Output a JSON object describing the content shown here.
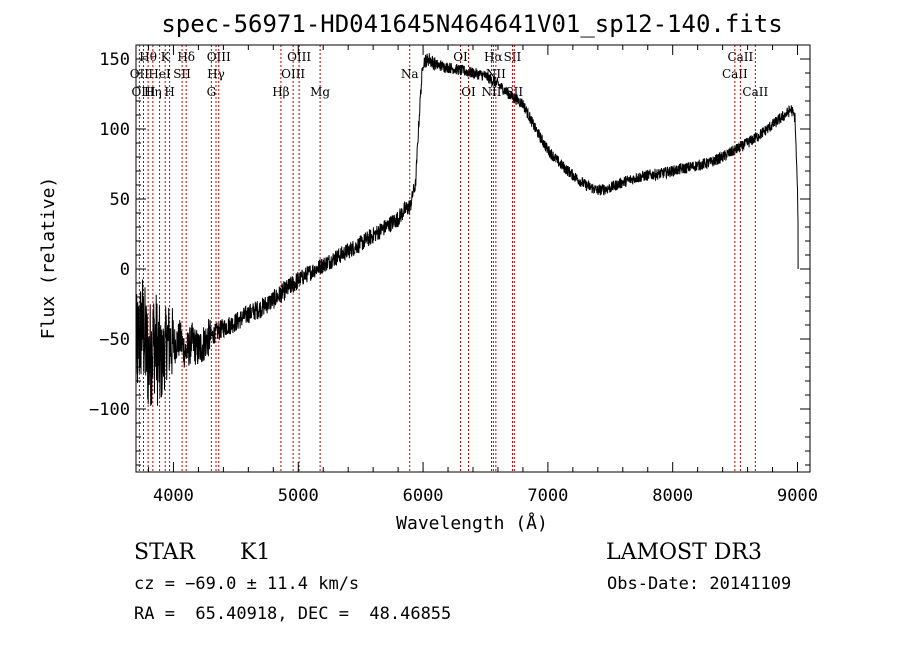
{
  "chart_data": {
    "type": "line",
    "title": "spec-56971-HD041645N464641V01_sp12-140.fits",
    "xlabel": "Wavelength (Å)",
    "ylabel": "Flux (relative)",
    "xlim": [
      3700,
      9100
    ],
    "ylim": [
      -145,
      160
    ],
    "x_ticks": [
      4000,
      5000,
      6000,
      7000,
      8000,
      9000
    ],
    "x_tick_labels": [
      "4000",
      "5000",
      "6000",
      "7000",
      "8000",
      "9000"
    ],
    "y_ticks": [
      -100,
      -50,
      0,
      50,
      100,
      150
    ],
    "y_tick_labels": [
      "−100",
      "−50",
      "0",
      "50",
      "100",
      "150"
    ],
    "series": [
      {
        "name": "spectrum",
        "points": [
          [
            3700,
            -60
          ],
          [
            3750,
            -40
          ],
          [
            3800,
            -65
          ],
          [
            3850,
            -50
          ],
          [
            3900,
            -70
          ],
          [
            3950,
            -50
          ],
          [
            4000,
            -55
          ],
          [
            4050,
            -50
          ],
          [
            4100,
            -60
          ],
          [
            4150,
            -52
          ],
          [
            4200,
            -58
          ],
          [
            4250,
            -52
          ],
          [
            4300,
            -48
          ],
          [
            4350,
            -45
          ],
          [
            4400,
            -42
          ],
          [
            4500,
            -38
          ],
          [
            4600,
            -32
          ],
          [
            4700,
            -28
          ],
          [
            4800,
            -22
          ],
          [
            4900,
            -15
          ],
          [
            5000,
            -8
          ],
          [
            5100,
            -2
          ],
          [
            5200,
            3
          ],
          [
            5300,
            8
          ],
          [
            5400,
            13
          ],
          [
            5500,
            18
          ],
          [
            5600,
            24
          ],
          [
            5700,
            30
          ],
          [
            5800,
            36
          ],
          [
            5850,
            42
          ],
          [
            5900,
            45
          ],
          [
            5920,
            55
          ],
          [
            5940,
            60
          ],
          [
            5960,
            95
          ],
          [
            5980,
            125
          ],
          [
            6000,
            148
          ],
          [
            6050,
            150
          ],
          [
            6100,
            146
          ],
          [
            6200,
            144
          ],
          [
            6300,
            142
          ],
          [
            6400,
            140
          ],
          [
            6500,
            138
          ],
          [
            6600,
            132
          ],
          [
            6700,
            124
          ],
          [
            6800,
            118
          ],
          [
            6900,
            100
          ],
          [
            7000,
            85
          ],
          [
            7100,
            75
          ],
          [
            7200,
            67
          ],
          [
            7300,
            60
          ],
          [
            7400,
            56
          ],
          [
            7500,
            58
          ],
          [
            7600,
            62
          ],
          [
            7700,
            65
          ],
          [
            7800,
            67
          ],
          [
            7900,
            68
          ],
          [
            8000,
            70
          ],
          [
            8100,
            72
          ],
          [
            8200,
            74
          ],
          [
            8300,
            76
          ],
          [
            8400,
            80
          ],
          [
            8500,
            85
          ],
          [
            8600,
            90
          ],
          [
            8700,
            96
          ],
          [
            8800,
            103
          ],
          [
            8900,
            110
          ],
          [
            8950,
            114
          ],
          [
            8980,
            108
          ],
          [
            9000,
            55
          ],
          [
            9005,
            28
          ]
        ],
        "color": "#000000"
      }
    ],
    "line_markers": [
      {
        "label": "Hθ",
        "x": 3797,
        "row": 1
      },
      {
        "label": "Hη",
        "x": 3835,
        "row": 3
      },
      {
        "label": "K",
        "x": 3934,
        "row": 1
      },
      {
        "label": "H",
        "x": 3969,
        "row": 3
      },
      {
        "label": "Hδ",
        "x": 4102,
        "row": 1
      },
      {
        "label": "SII",
        "x": 4069,
        "row": 2
      },
      {
        "label": "HeI",
        "x": 3889,
        "row": 2
      },
      {
        "label": "OII",
        "x": 3727,
        "row": 2
      },
      {
        "label": "OIII",
        "x": 3760,
        "row": 3
      },
      {
        "label": "OIII",
        "x": 4363,
        "row": 1
      },
      {
        "label": "Hγ",
        "x": 4341,
        "row": 2
      },
      {
        "label": "G",
        "x": 4304,
        "row": 3
      },
      {
        "label": "Hβ",
        "x": 4861,
        "row": 3
      },
      {
        "label": "OIII",
        "x": 4959,
        "row": 2
      },
      {
        "label": "OIII",
        "x": 5007,
        "row": 1
      },
      {
        "label": "Mg",
        "x": 5175,
        "row": 3
      },
      {
        "label": "Na",
        "x": 5893,
        "row": 2
      },
      {
        "label": "OI",
        "x": 6300,
        "row": 1
      },
      {
        "label": "OI",
        "x": 6364,
        "row": 3
      },
      {
        "label": "NII",
        "x": 6548,
        "row": 3
      },
      {
        "label": "Hα",
        "x": 6563,
        "row": 1
      },
      {
        "label": "NII",
        "x": 6583,
        "row": 2
      },
      {
        "label": "SII",
        "x": 6716,
        "row": 1
      },
      {
        "label": "SII",
        "x": 6731,
        "row": 3
      },
      {
        "label": "CaII",
        "x": 8498,
        "row": 2
      },
      {
        "label": "CaII",
        "x": 8542,
        "row": 1
      },
      {
        "label": "CaII",
        "x": 8662,
        "row": 3
      }
    ]
  },
  "info": {
    "class": "STAR",
    "subclass": "K1",
    "survey": "LAMOST DR3",
    "cz": "cz = −69.0 ± 11.4 km/s",
    "obs_date": "Obs-Date: 20141109",
    "radec": "RA =  65.40918, DEC =  48.46855"
  }
}
